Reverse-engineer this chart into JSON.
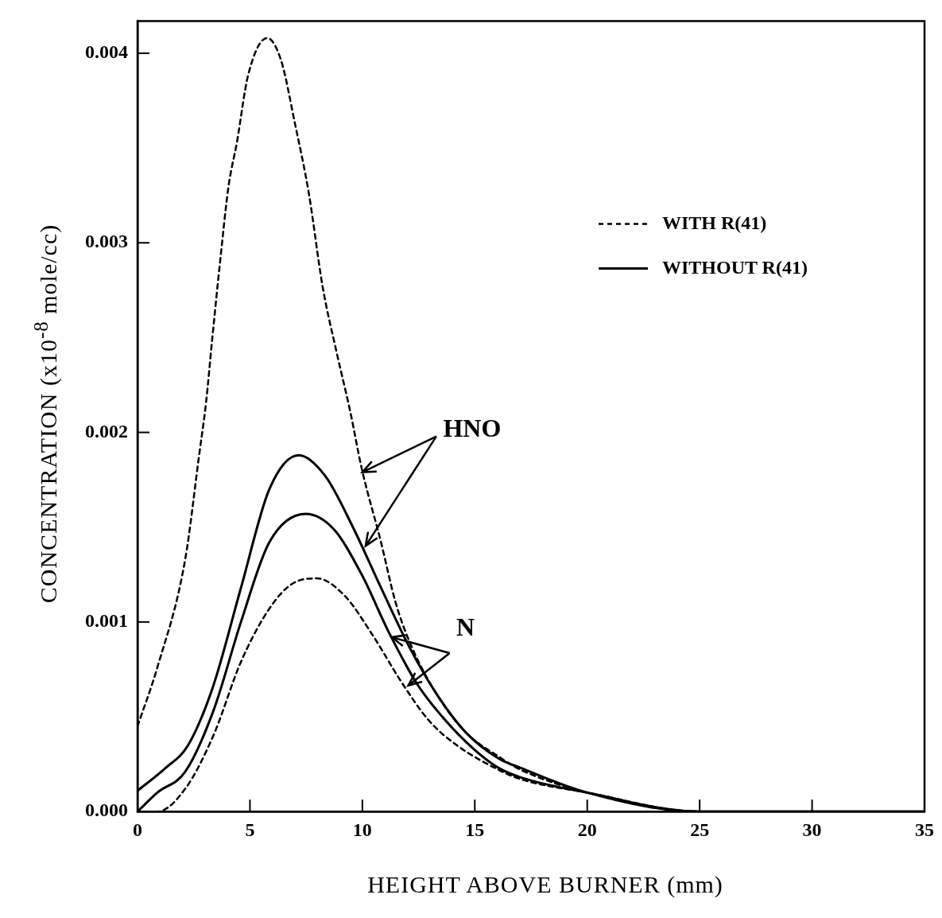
{
  "chart_data": {
    "type": "line",
    "xlabel": "HEIGHT ABOVE BURNER (mm)",
    "ylabel": "CONCENTRATION (x10$^{-8}$ mole/cc)",
    "xlim": [
      0,
      35
    ],
    "xticks": [
      0,
      5,
      10,
      15,
      20,
      25,
      30,
      35
    ],
    "ylim": [
      0,
      0.00417
    ],
    "yticks": [
      {
        "value": 0,
        "label": "0.000"
      },
      {
        "value": 0.001,
        "label": "0.001"
      },
      {
        "value": 0.002,
        "label": "0.002"
      },
      {
        "value": 0.003,
        "label": "0.003"
      },
      {
        "value": 0.004,
        "label": "0.004"
      }
    ],
    "grid": false,
    "legend": "top right",
    "marker": "none",
    "series": [
      {
        "name": "WITH R(41)",
        "color": "#000000",
        "line_style": "dashed",
        "x": [
          0,
          0.88,
          2.12,
          2.74,
          3.05,
          3.32,
          3.68,
          4.05,
          4.42,
          4.91,
          5.77,
          6.39,
          7.0,
          7.62,
          8.23,
          8.84,
          9.46,
          9.97,
          10.83,
          11.46,
          12.08,
          13.3,
          14.58,
          16.06,
          17.05,
          20,
          25,
          30,
          35
        ],
        "values": [
          0.00045,
          0.00076,
          0.00133,
          0.00188,
          0.00216,
          0.00249,
          0.00291,
          0.0033,
          0.00353,
          0.00388,
          0.00408,
          0.00396,
          0.00363,
          0.00326,
          0.00277,
          0.00243,
          0.00211,
          0.00181,
          0.00142,
          0.00111,
          0.0009,
          0.00062,
          0.00042,
          0.00029,
          0.00022,
          0.0001,
          0,
          0,
          0
        ]
      },
      {
        "name": "WITHOUT R(41)",
        "color": "#000000",
        "line_style": "solid",
        "x": [
          0,
          1.25,
          2.25,
          3.36,
          4.6,
          5.86,
          7.17,
          8.35,
          9.58,
          10.83,
          12.08,
          13.3,
          14.58,
          16.06,
          17.05,
          20,
          25,
          30,
          35
        ],
        "values": [
          0.00011,
          0.00023,
          0.00035,
          0.00066,
          0.00118,
          0.0017,
          0.00188,
          0.00177,
          0.0015,
          0.00118,
          0.00087,
          0.00062,
          0.00042,
          0.00028,
          0.00023,
          0.0001,
          0,
          0,
          0
        ]
      },
      {
        "color": "#000000",
        "line_style": "solid",
        "x": [
          0,
          0.88,
          2.12,
          3.37,
          4.6,
          5.86,
          7.48,
          8.72,
          9.97,
          11.2,
          12.45,
          13.7,
          14.95,
          16.06,
          17.05,
          20,
          25,
          30,
          35
        ],
        "values": [
          0,
          0.0001,
          0.00021,
          0.00053,
          0.001,
          0.00142,
          0.00157,
          0.00149,
          0.00125,
          0.00094,
          0.00067,
          0.00048,
          0.00033,
          0.00023,
          0.00018,
          0.0001,
          0,
          0,
          0
        ]
      },
      {
        "color": "#000000",
        "line_style": "dashed",
        "x": [
          0,
          0.88,
          2.12,
          3.37,
          4.6,
          5.86,
          6.86,
          7.98,
          9.2,
          10.46,
          11.7,
          12.96,
          14.2,
          16.06,
          17.05,
          20,
          25,
          30,
          35
        ],
        "values": [
          0,
          0,
          0.00012,
          0.0004,
          0.00079,
          0.00107,
          0.0012,
          0.00123,
          0.00114,
          0.00093,
          0.00069,
          0.00048,
          0.00035,
          0.00022,
          0.00017,
          0.0001,
          0,
          0,
          0
        ]
      }
    ],
    "annotations": [
      {
        "text": "HNO",
        "x": 10,
        "y": 0.00179
      },
      {
        "text": "N",
        "x": 11.3,
        "y": 0.00092
      }
    ]
  }
}
